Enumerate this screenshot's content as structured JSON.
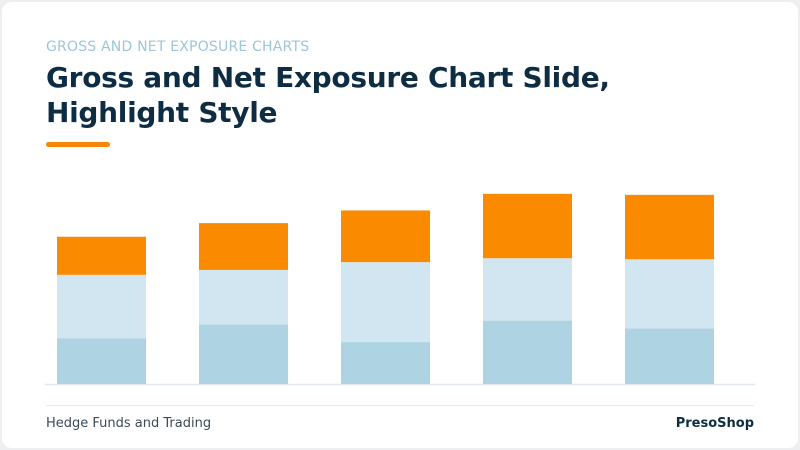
{
  "header": {
    "eyebrow": "GROSS AND NET EXPOSURE CHARTS",
    "title": "Gross and Net Exposure Chart Slide, Highlight Style"
  },
  "footer": {
    "left_text": "Hedge Funds and Trading",
    "brand": "PresoShop"
  },
  "colors": {
    "title": "#0e2d43",
    "eyebrow": "#9cc6da",
    "accent": "#f5860a",
    "series_bottom": "#aed4e3",
    "series_middle": "#d1e6f0",
    "series_top": "#fa8a00",
    "baseline": "#e2e8ee"
  },
  "chart_data": {
    "type": "bar",
    "stacked": true,
    "categories": [
      "",
      "",
      "",
      "",
      ""
    ],
    "series": [
      {
        "values": [
          47,
          61,
          43,
          65,
          57
        ]
      },
      {
        "values": [
          65,
          56,
          82,
          64,
          71
        ]
      },
      {
        "values": [
          39,
          48,
          53,
          66,
          66
        ]
      }
    ],
    "ylim": [
      0,
      200
    ],
    "grid": false,
    "legend": "none",
    "axis_labels": false
  }
}
